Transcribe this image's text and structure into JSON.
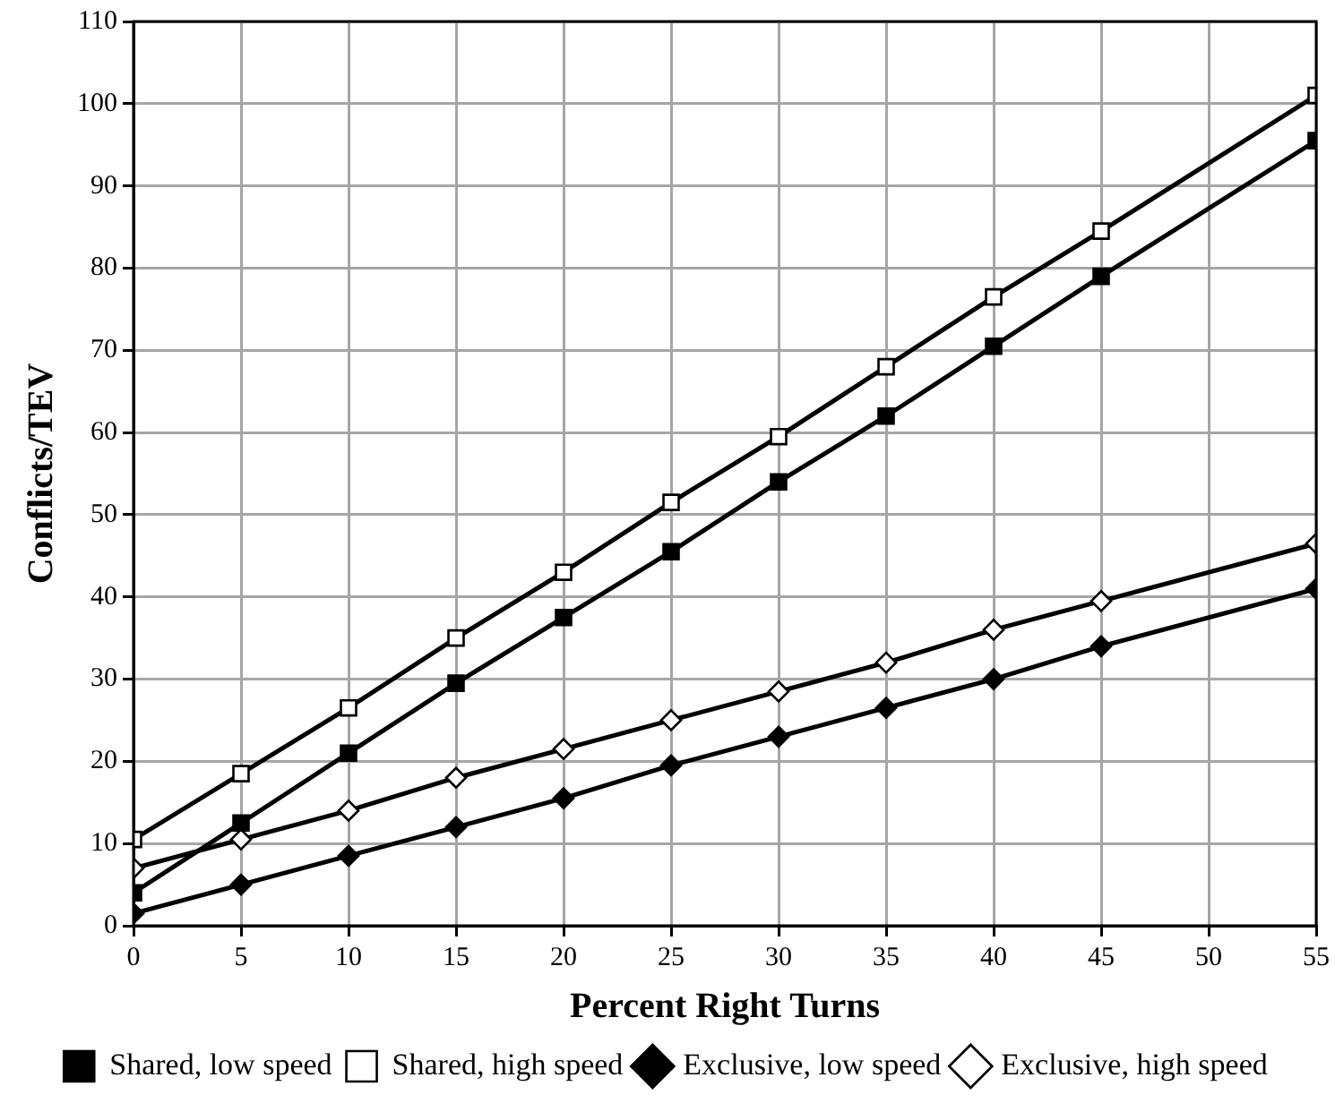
{
  "chart_data": {
    "type": "line",
    "xlabel": "Percent Right Turns",
    "ylabel": "Conflicts/TEV",
    "x": [
      0,
      5,
      10,
      15,
      20,
      25,
      30,
      35,
      40,
      45,
      55
    ],
    "series": [
      {
        "name": "Shared, low speed",
        "color": "#000000",
        "marker": "square",
        "values": [
          4,
          12.5,
          21,
          29.5,
          37.5,
          45.5,
          54,
          62,
          70.5,
          79,
          95.5
        ]
      },
      {
        "name": "Shared, high speed",
        "color": "#000000",
        "marker": "square",
        "values": [
          10.5,
          18.5,
          26.5,
          35,
          43,
          51.5,
          59.5,
          68,
          76.5,
          84.5,
          101
        ]
      },
      {
        "name": "Exclusive, low speed",
        "color": "#000000",
        "marker": "diamond",
        "values": [
          1.5,
          5,
          8.5,
          12,
          15.5,
          19.5,
          23,
          26.5,
          30,
          34,
          41
        ]
      },
      {
        "name": "Exclusive, high speed",
        "color": "#000000",
        "marker": "diamond",
        "values": [
          7,
          10.5,
          14,
          18,
          21.5,
          25,
          28.5,
          32,
          36,
          39.5,
          46.5
        ]
      }
    ],
    "xlim": [
      0,
      55
    ],
    "xticks": [
      0,
      5,
      10,
      15,
      20,
      25,
      30,
      35,
      40,
      45,
      50,
      55
    ],
    "ylim": [
      0,
      110
    ],
    "yticks": [
      0,
      10,
      20,
      30,
      40,
      50,
      60,
      70,
      80,
      90,
      100,
      110
    ],
    "grid": true,
    "legend": "bottom",
    "line_style": "solid"
  }
}
